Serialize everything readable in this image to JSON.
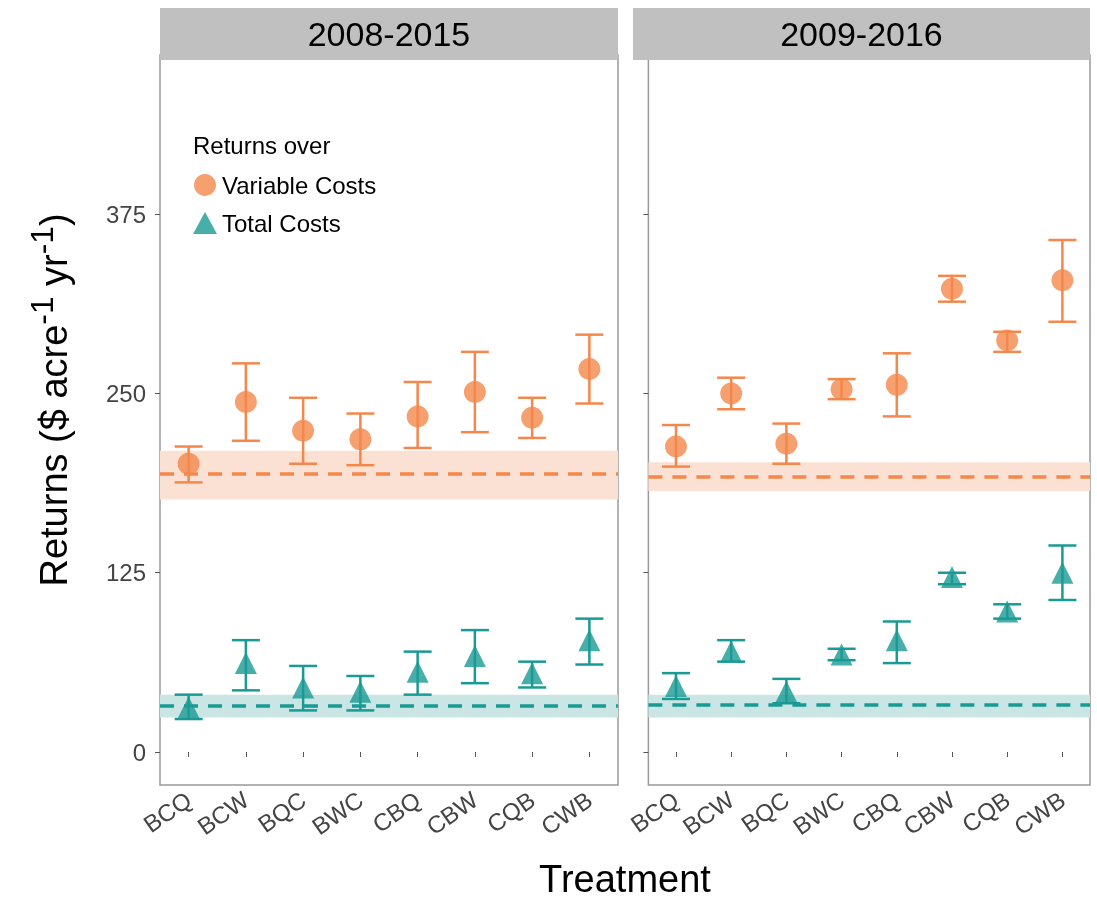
{
  "chart_data": [
    {
      "type": "scatter",
      "title": "2008-2015",
      "xlabel": "Treatment",
      "ylabel": "Returns ($ acre$^{-1}$ yr$^{-1}$)",
      "legend_title": "Returns over",
      "legend": "top left",
      "grid": false,
      "categories": [
        "BCQ",
        "BCW",
        "BQC",
        "BWC",
        "CBQ",
        "CBW",
        "CQB",
        "CWB"
      ],
      "ylim": [
        -23,
        486
      ],
      "yticks": [
        0,
        125,
        250,
        375
      ],
      "series": [
        {
          "name": "Variable Costs",
          "color": "#f4874b",
          "marker": "circle",
          "values": [
            201,
            244,
            224,
            218,
            234,
            251,
            233,
            267
          ],
          "errors": [
            [
              188,
              213
            ],
            [
              217,
              271
            ],
            [
              201,
              247
            ],
            [
              200,
              236
            ],
            [
              212,
              258
            ],
            [
              223,
              279
            ],
            [
              219,
              247
            ],
            [
              243,
              291
            ]
          ]
        },
        {
          "name": "Total Costs",
          "color": "#1a9a94",
          "marker": "triangle",
          "values": [
            31,
            62,
            45,
            42,
            56,
            67,
            55,
            78
          ],
          "errors": [
            [
              23,
              40
            ],
            [
              43,
              78
            ],
            [
              29,
              60
            ],
            [
              29,
              53
            ],
            [
              40,
              70
            ],
            [
              48,
              85
            ],
            [
              45,
              63
            ],
            [
              61,
              93
            ]
          ]
        }
      ],
      "ref_lines": [
        {
          "axis": "y",
          "value": 194,
          "color": "#f4874b",
          "line_style": "dashed"
        },
        {
          "axis": "y",
          "value": 32,
          "color": "#1a9a94",
          "line_style": "dashed"
        }
      ],
      "bands": [
        {
          "axis": "y",
          "from": 176,
          "to": 210,
          "color": "#fbe1d3"
        },
        {
          "axis": "y",
          "from": 24,
          "to": 40,
          "color": "#c9e5e4"
        }
      ]
    },
    {
      "type": "scatter",
      "title": "2009-2016",
      "tick_labels": "x",
      "grid": false,
      "categories": [
        "BCQ",
        "BCW",
        "BQC",
        "BWC",
        "CBQ",
        "CBW",
        "CQB",
        "CWB"
      ],
      "ylim": [
        -23,
        486
      ],
      "yticks": [
        0,
        125,
        250,
        375
      ],
      "series": [
        {
          "color": "#f4874b",
          "marker": "circle",
          "values": [
            213,
            250,
            215,
            253,
            256,
            323,
            287,
            329
          ],
          "errors": [
            [
              199,
              228
            ],
            [
              239,
              261
            ],
            [
              201,
              229
            ],
            [
              246,
              260
            ],
            [
              234,
              278
            ],
            [
              314,
              332
            ],
            [
              279,
              293
            ],
            [
              300,
              357
            ]
          ]
        },
        {
          "color": "#1a9a94",
          "marker": "triangle",
          "values": [
            46,
            70,
            42,
            68,
            78,
            122,
            98,
            125
          ],
          "errors": [
            [
              37,
              55
            ],
            [
              63,
              78
            ],
            [
              34,
              51
            ],
            [
              64,
              72
            ],
            [
              62,
              91
            ],
            [
              117,
              125
            ],
            [
              93,
              103
            ],
            [
              106,
              144
            ]
          ]
        }
      ],
      "ref_lines": [
        {
          "axis": "y",
          "value": 192,
          "color": "#f4874b",
          "line_style": "dashed"
        },
        {
          "axis": "y",
          "value": 33,
          "color": "#1a9a94",
          "line_style": "dashed"
        }
      ],
      "bands": [
        {
          "axis": "y",
          "from": 182,
          "to": 202,
          "color": "#fbe1d3"
        },
        {
          "axis": "y",
          "from": 24,
          "to": 40,
          "color": "#c9e5e4"
        }
      ]
    }
  ]
}
